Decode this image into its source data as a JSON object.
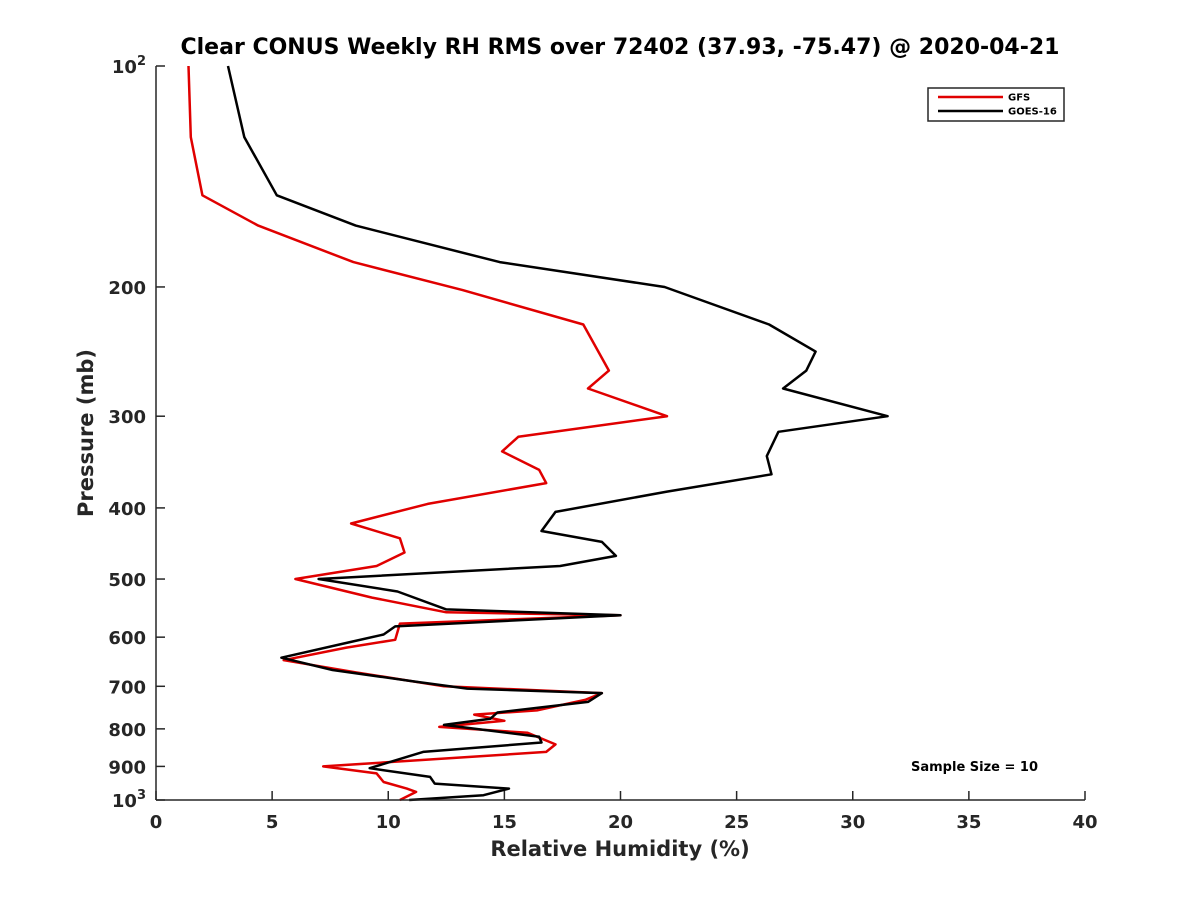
{
  "chart_data": {
    "type": "line",
    "title": "Clear CONUS Weekly RH RMS over 72402 (37.93, -75.47) @ 2020-04-21",
    "xlabel": "Relative Humidity (%)",
    "ylabel": "Pressure (mb)",
    "xlim": [
      0,
      40
    ],
    "ylim": [
      100,
      1000
    ],
    "y_scale": "log",
    "y_direction": "reverse",
    "x_ticks": [
      0,
      5,
      10,
      15,
      20,
      25,
      30,
      35,
      40
    ],
    "x_tick_labels": [
      "0",
      "5",
      "10",
      "15",
      "20",
      "25",
      "30",
      "35",
      "40"
    ],
    "y_ticks": [
      {
        "value": 100,
        "base": "10",
        "exp": "2"
      },
      {
        "value": 200,
        "label": "200"
      },
      {
        "value": 300,
        "label": "300"
      },
      {
        "value": 400,
        "label": "400"
      },
      {
        "value": 500,
        "label": "500"
      },
      {
        "value": 600,
        "label": "600"
      },
      {
        "value": 700,
        "label": "700"
      },
      {
        "value": 800,
        "label": "800"
      },
      {
        "value": 900,
        "label": "900"
      },
      {
        "value": 1000,
        "base": "10",
        "exp": "3"
      }
    ],
    "legend_position": "top-right",
    "annotation": "Sample Size = 10",
    "series": [
      {
        "name": "GFS",
        "color": "#e00000",
        "rh": [
          1.4,
          1.5,
          2.0,
          4.4,
          8.5,
          13.2,
          18.4,
          19.5,
          18.6,
          22.0,
          15.6,
          14.9,
          16.5,
          16.8,
          11.7,
          8.4,
          10.5,
          10.7,
          9.5,
          6.0,
          9.3,
          12.5,
          20.0,
          10.5,
          10.3,
          8.2,
          5.5,
          8.6,
          12.4,
          19.2,
          18.5,
          16.4,
          13.7,
          15.0,
          12.2,
          16.0,
          17.2,
          16.8,
          7.2,
          9.5,
          9.8,
          10.8,
          11.2,
          10.5
        ],
        "pressure": [
          100,
          125,
          150,
          165,
          185,
          202,
          225,
          260,
          275,
          300,
          320,
          335,
          355,
          370,
          395,
          420,
          440,
          460,
          480,
          500,
          530,
          555,
          560,
          575,
          605,
          620,
          645,
          670,
          700,
          715,
          730,
          755,
          765,
          780,
          795,
          810,
          840,
          860,
          900,
          920,
          945,
          965,
          975,
          1000
        ]
      },
      {
        "name": "GOES-16",
        "color": "#000000",
        "rh": [
          3.1,
          3.8,
          5.2,
          8.6,
          14.8,
          21.9,
          26.4,
          28.4,
          28.0,
          27.0,
          31.5,
          26.8,
          26.3,
          26.5,
          22.0,
          17.2,
          16.6,
          19.2,
          19.8,
          17.4,
          7.0,
          10.4,
          12.5,
          20.0,
          10.3,
          9.8,
          8.3,
          5.4,
          7.6,
          11.2,
          13.4,
          19.2,
          18.6,
          14.7,
          14.4,
          12.4,
          16.5,
          16.6,
          11.5,
          9.2,
          11.8,
          12.0,
          15.2,
          14.1,
          10.9
        ],
        "pressure": [
          100,
          125,
          150,
          165,
          185,
          200,
          225,
          245,
          260,
          275,
          300,
          315,
          340,
          360,
          380,
          405,
          430,
          445,
          465,
          480,
          500,
          520,
          550,
          560,
          580,
          595,
          610,
          640,
          665,
          690,
          705,
          715,
          735,
          760,
          775,
          790,
          820,
          835,
          860,
          905,
          930,
          950,
          965,
          985,
          1000
        ]
      }
    ]
  }
}
